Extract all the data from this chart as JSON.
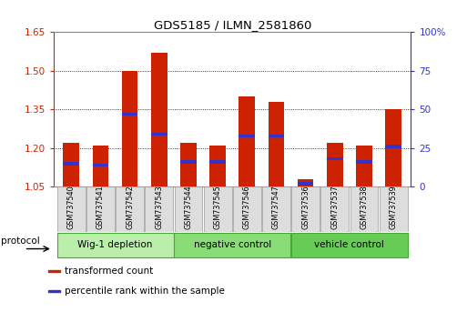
{
  "title": "GDS5185 / ILMN_2581860",
  "samples": [
    "GSM737540",
    "GSM737541",
    "GSM737542",
    "GSM737543",
    "GSM737544",
    "GSM737545",
    "GSM737546",
    "GSM737547",
    "GSM737536",
    "GSM737537",
    "GSM737538",
    "GSM737539"
  ],
  "transformed_counts": [
    1.22,
    1.21,
    1.5,
    1.57,
    1.22,
    1.21,
    1.4,
    1.38,
    1.08,
    1.22,
    1.21,
    1.35
  ],
  "percentile_ranks": [
    15,
    14,
    47,
    34,
    16,
    16,
    33,
    33,
    2,
    18,
    16,
    26
  ],
  "ylim_left": [
    1.05,
    1.65
  ],
  "ylim_right": [
    0,
    100
  ],
  "yticks_left": [
    1.05,
    1.2,
    1.35,
    1.5,
    1.65
  ],
  "yticks_right": [
    0,
    25,
    50,
    75,
    100
  ],
  "ytick_labels_right": [
    "0",
    "25",
    "50",
    "75",
    "100%"
  ],
  "bar_color_red": "#CC2200",
  "bar_color_blue": "#3333CC",
  "groups": [
    {
      "label": "Wig-1 depletion",
      "indices": [
        0,
        1,
        2,
        3
      ],
      "color": "#BBEEAA"
    },
    {
      "label": "negative control",
      "indices": [
        4,
        5,
        6,
        7
      ],
      "color": "#88DD77"
    },
    {
      "label": "vehicle control",
      "indices": [
        8,
        9,
        10,
        11
      ],
      "color": "#66CC55"
    }
  ],
  "group_border_color": "#44AA33",
  "legend_items": [
    {
      "label": "transformed count",
      "color": "#CC2200"
    },
    {
      "label": "percentile rank within the sample",
      "color": "#3333CC"
    }
  ],
  "protocol_label": "protocol",
  "bar_width": 0.55,
  "base_value": 1.05,
  "left_axis_color": "#CC2200",
  "right_axis_color": "#3333CC"
}
